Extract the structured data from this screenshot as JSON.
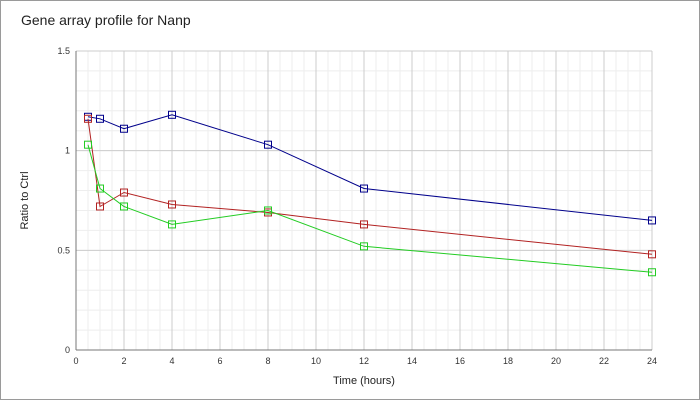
{
  "chart_data": {
    "type": "line",
    "title": "Gene array profile for Nanp",
    "xlabel": "Time (hours)",
    "ylabel": "Ratio to Ctrl",
    "xlim": [
      0,
      24
    ],
    "ylim": [
      0,
      1.5
    ],
    "x_ticks": [
      0,
      2,
      4,
      6,
      8,
      10,
      12,
      14,
      16,
      18,
      20,
      22,
      24
    ],
    "y_ticks": [
      0,
      0.5,
      1,
      1.5
    ],
    "y_tick_labels": [
      "0",
      "0.5",
      "1",
      "1.5"
    ],
    "grid": true,
    "series": [
      {
        "color": "#00008b",
        "x": [
          0.5,
          1,
          2,
          4,
          8,
          12,
          24
        ],
        "y": [
          1.17,
          1.16,
          1.11,
          1.18,
          1.03,
          0.81,
          0.65
        ]
      },
      {
        "color": "#b22222",
        "x": [
          0.5,
          1,
          2,
          4,
          8,
          12,
          24
        ],
        "y": [
          1.16,
          0.72,
          0.79,
          0.73,
          0.69,
          0.63,
          0.48
        ]
      },
      {
        "color": "#22cc22",
        "x": [
          0.5,
          1,
          2,
          4,
          8,
          12,
          24
        ],
        "y": [
          1.03,
          0.81,
          0.72,
          0.63,
          0.7,
          0.52,
          0.39
        ]
      }
    ]
  }
}
